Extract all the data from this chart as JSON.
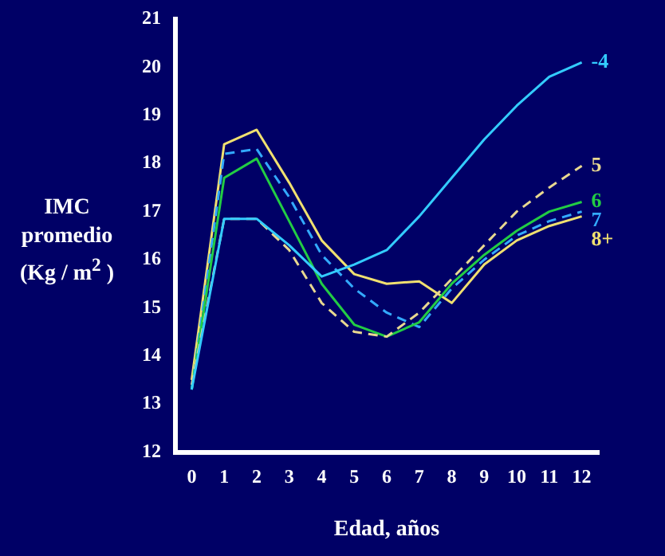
{
  "chart_data": {
    "type": "line",
    "xlabel": "Edad, años",
    "ylabel": "IMC promedio (Kg / m$^{2}$ )",
    "x": [
      0,
      1,
      2,
      3,
      4,
      5,
      6,
      7,
      8,
      9,
      10,
      11,
      12
    ],
    "series": [
      {
        "name": "-4",
        "color": "#33ccff",
        "line_style": "solid",
        "values": [
          13.3,
          16.85,
          16.85,
          16.3,
          15.65,
          15.9,
          16.2,
          16.9,
          17.7,
          18.5,
          19.2,
          19.8,
          20.1
        ]
      },
      {
        "name": "5",
        "color": "#e8d890",
        "line_style": "dashed",
        "values": [
          13.4,
          16.85,
          16.85,
          16.2,
          15.1,
          14.5,
          14.4,
          14.9,
          15.6,
          16.3,
          17.0,
          17.5,
          17.95
        ]
      },
      {
        "name": "6",
        "color": "#22cc44",
        "line_style": "solid",
        "values": [
          13.3,
          17.7,
          18.1,
          16.8,
          15.5,
          14.65,
          14.4,
          14.7,
          15.5,
          16.1,
          16.6,
          17.0,
          17.2
        ]
      },
      {
        "name": "7",
        "color": "#33aaff",
        "line_style": "dashed",
        "values": [
          13.3,
          18.2,
          18.3,
          17.3,
          16.1,
          15.4,
          14.9,
          14.6,
          15.4,
          16.0,
          16.5,
          16.8,
          17.0
        ]
      },
      {
        "name": "8+",
        "color": "#f0e070",
        "line_style": "solid",
        "values": [
          13.5,
          18.4,
          18.7,
          17.6,
          16.4,
          15.7,
          15.5,
          15.55,
          15.1,
          15.9,
          16.4,
          16.7,
          16.9
        ]
      }
    ],
    "xlim": [
      -0.5,
      12.5
    ],
    "xticks": [
      0,
      1,
      2,
      3,
      4,
      5,
      6,
      7,
      8,
      9,
      10,
      11,
      12
    ],
    "ylim": [
      12,
      21
    ],
    "yticks": [
      12,
      13,
      14,
      15,
      16,
      17,
      18,
      19,
      20,
      21
    ],
    "grid": false,
    "legend": false,
    "marker": "none"
  }
}
